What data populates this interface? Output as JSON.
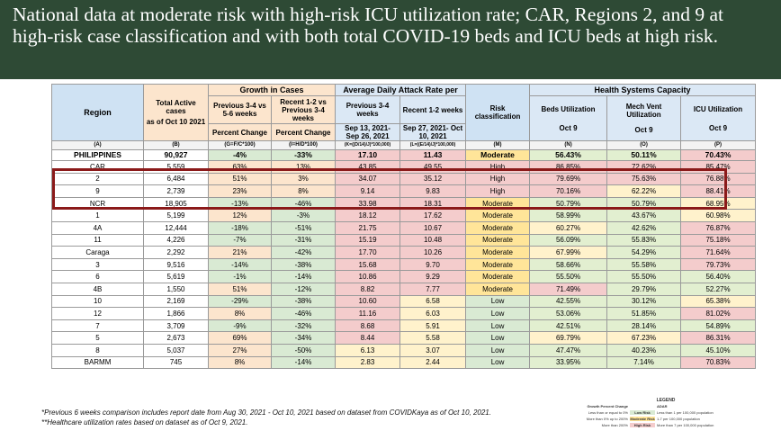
{
  "banner": {
    "title": "National data at moderate risk with high-risk ICU utilization rate; CAR, Regions 2, and 9 at high-risk case classification and with both total COVID-19 beds and ICU beds at high risk."
  },
  "table": {
    "headers": {
      "region": "Region",
      "total_active": "Total Active cases",
      "total_active_date": "as of Oct 10 2021",
      "growth_group": "Growth in Cases",
      "growth_prev": "Previous 3-4 vs 5-6 weeks",
      "growth_recent": "Recent 1-2 vs Previous 3-4 weeks",
      "growth_pct1": "Percent Change",
      "growth_pct2": "Percent Change",
      "adar_group": "Average Daily Attack Rate per",
      "adar_prev": "Previous 3-4 weeks",
      "adar_recent": "Recent 1-2 weeks",
      "adar_prev_dates": "Sep 13, 2021- Sep 26, 2021",
      "adar_recent_dates": "Sep 27, 2021- Oct 10, 2021",
      "risk": "Risk classification",
      "hsc_group": "Health Systems Capacity",
      "beds": "Beds Utilization",
      "mech": "Mech Vent Utilization",
      "icu": "ICU Utilization",
      "oct9_1": "Oct 9",
      "oct9_2": "Oct 9",
      "oct9_3": "Oct 9"
    },
    "codes": [
      "(A)",
      "(B)",
      "(G=F/C*100)",
      "(I=H/D*100)",
      "(K=((D/14)/J)*100,000)",
      "(L=((E/14)/J)*100,000)",
      "(M)",
      "(N)",
      "(O)",
      "(P)"
    ],
    "rows": [
      {
        "region": "PHILIPPINES",
        "active": "90,927",
        "g1": "-4%",
        "g2": "-33%",
        "a1": "17.10",
        "a2": "11.43",
        "risk": "Moderate",
        "beds": "56.43%",
        "mech": "50.11%",
        "icu": "70.43%"
      },
      {
        "region": "CAR",
        "active": "5,559",
        "g1": "63%",
        "g2": "13%",
        "a1": "43.85",
        "a2": "49.55",
        "risk": "High",
        "beds": "86.85%",
        "mech": "72.62%",
        "icu": "85.47%"
      },
      {
        "region": "2",
        "active": "6,484",
        "g1": "51%",
        "g2": "3%",
        "a1": "34.07",
        "a2": "35.12",
        "risk": "High",
        "beds": "79.69%",
        "mech": "75.63%",
        "icu": "76.88%"
      },
      {
        "region": "9",
        "active": "2,739",
        "g1": "23%",
        "g2": "8%",
        "a1": "9.14",
        "a2": "9.83",
        "risk": "High",
        "beds": "70.16%",
        "mech": "62.22%",
        "icu": "88.41%"
      },
      {
        "region": "NCR",
        "active": "18,905",
        "g1": "-13%",
        "g2": "-46%",
        "a1": "33.98",
        "a2": "18.31",
        "risk": "Moderate",
        "beds": "50.79%",
        "mech": "50.79%",
        "icu": "68.95%"
      },
      {
        "region": "1",
        "active": "5,199",
        "g1": "12%",
        "g2": "-3%",
        "a1": "18.12",
        "a2": "17.62",
        "risk": "Moderate",
        "beds": "58.99%",
        "mech": "43.67%",
        "icu": "60.98%"
      },
      {
        "region": "4A",
        "active": "12,444",
        "g1": "-18%",
        "g2": "-51%",
        "a1": "21.75",
        "a2": "10.67",
        "risk": "Moderate",
        "beds": "60.27%",
        "mech": "42.62%",
        "icu": "76.87%"
      },
      {
        "region": "11",
        "active": "4,226",
        "g1": "-7%",
        "g2": "-31%",
        "a1": "15.19",
        "a2": "10.48",
        "risk": "Moderate",
        "beds": "56.09%",
        "mech": "55.83%",
        "icu": "75.18%"
      },
      {
        "region": "Caraga",
        "active": "2,292",
        "g1": "21%",
        "g2": "-42%",
        "a1": "17.70",
        "a2": "10.26",
        "risk": "Moderate",
        "beds": "67.99%",
        "mech": "54.29%",
        "icu": "71.64%"
      },
      {
        "region": "3",
        "active": "9,516",
        "g1": "-14%",
        "g2": "-38%",
        "a1": "15.68",
        "a2": "9.70",
        "risk": "Moderate",
        "beds": "58.66%",
        "mech": "55.58%",
        "icu": "79.73%"
      },
      {
        "region": "6",
        "active": "5,619",
        "g1": "-1%",
        "g2": "-14%",
        "a1": "10.86",
        "a2": "9.29",
        "risk": "Moderate",
        "beds": "55.50%",
        "mech": "55.50%",
        "icu": "56.40%"
      },
      {
        "region": "4B",
        "active": "1,550",
        "g1": "51%",
        "g2": "-12%",
        "a1": "8.82",
        "a2": "7.77",
        "risk": "Moderate",
        "beds": "71.49%",
        "mech": "29.79%",
        "icu": "52.27%"
      },
      {
        "region": "10",
        "active": "2,169",
        "g1": "-29%",
        "g2": "-38%",
        "a1": "10.60",
        "a2": "6.58",
        "risk": "Low",
        "beds": "42.55%",
        "mech": "30.12%",
        "icu": "65.38%"
      },
      {
        "region": "12",
        "active": "1,866",
        "g1": "8%",
        "g2": "-46%",
        "a1": "11.16",
        "a2": "6.03",
        "risk": "Low",
        "beds": "53.06%",
        "mech": "51.85%",
        "icu": "81.02%"
      },
      {
        "region": "7",
        "active": "3,709",
        "g1": "-9%",
        "g2": "-32%",
        "a1": "8.68",
        "a2": "5.91",
        "risk": "Low",
        "beds": "42.51%",
        "mech": "28.14%",
        "icu": "54.89%"
      },
      {
        "region": "5",
        "active": "2,673",
        "g1": "69%",
        "g2": "-34%",
        "a1": "8.44",
        "a2": "5.58",
        "risk": "Low",
        "beds": "69.79%",
        "mech": "67.23%",
        "icu": "86.31%"
      },
      {
        "region": "8",
        "active": "5,037",
        "g1": "27%",
        "g2": "-50%",
        "a1": "6.13",
        "a2": "3.07",
        "risk": "Low",
        "beds": "47.47%",
        "mech": "40.23%",
        "icu": "45.10%"
      },
      {
        "region": "BARMM",
        "active": "745",
        "g1": "8%",
        "g2": "-14%",
        "a1": "2.83",
        "a2": "2.44",
        "risk": "Low",
        "beds": "33.95%",
        "mech": "7.14%",
        "icu": "70.83%"
      }
    ]
  },
  "footnotes": {
    "f1": "*Previous 6 weeks comparison includes report date from Aug 30, 2021 - Oct 10, 2021 based on dataset from COVIDKaya as of Oct 10, 2021.",
    "f2": "**Healthcare utilization rates based on dataset as of Oct 9, 2021."
  },
  "legend": {
    "title": "LEGEND",
    "col1": "Growth Percent Change",
    "col2": "ADAR",
    "rows": [
      {
        "left": "Less than or equal to 0%",
        "mid": "Low Risk",
        "right": "Less than 1 per 100,000 population"
      },
      {
        "left": "More than 0% up to 200%",
        "mid": "Moderate Risk",
        "right": "1-7 per 100,000 population"
      },
      {
        "left": "More than 200%",
        "mid": "High Risk",
        "right": "More than 7 per 100,000 population"
      }
    ]
  },
  "colors": {
    "banner_bg": "#2e4a35",
    "highlight_border": "#8b1a1a",
    "low_risk": "#d9ead3",
    "moderate_risk": "#ffe599",
    "high_risk": "#f4cccc"
  }
}
